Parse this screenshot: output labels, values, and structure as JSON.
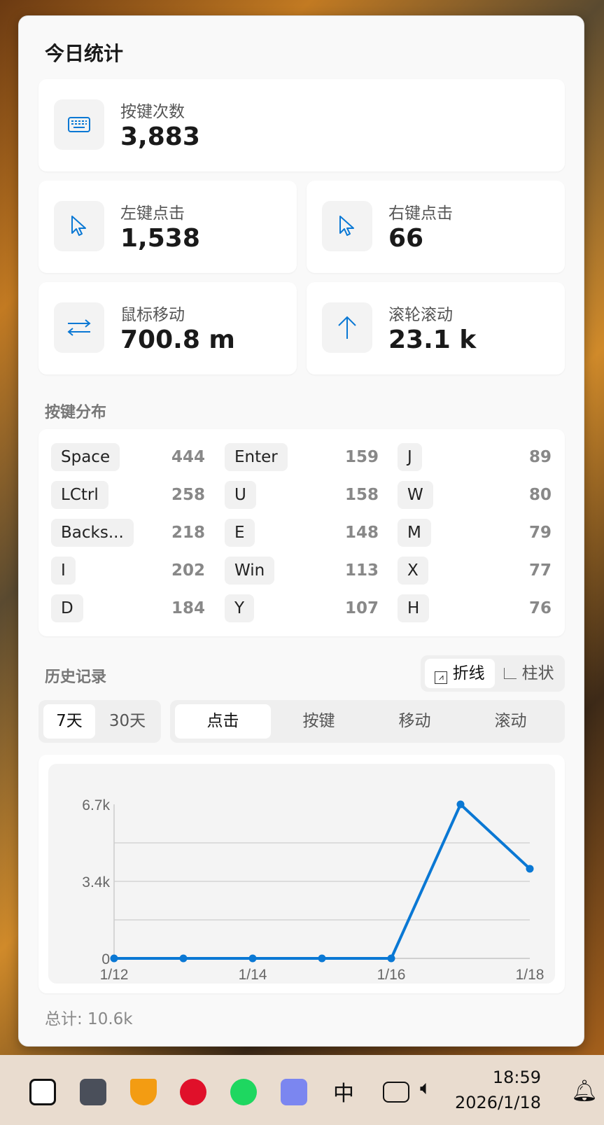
{
  "title": "今日统计",
  "stats": {
    "keys": {
      "label": "按键次数",
      "value": "3,883",
      "icon": "keyboard-icon"
    },
    "left": {
      "label": "左键点击",
      "value": "1,538",
      "icon": "cursor-icon"
    },
    "right": {
      "label": "右键点击",
      "value": "66",
      "icon": "cursor-icon"
    },
    "move": {
      "label": "鼠标移动",
      "value": "700.8 m",
      "icon": "arrows-swap-icon"
    },
    "scroll": {
      "label": "滚轮滚动",
      "value": "23.1 k",
      "icon": "arrow-up-icon"
    }
  },
  "key_dist": {
    "title": "按键分布",
    "items": [
      {
        "k": "Space",
        "v": "444"
      },
      {
        "k": "Enter",
        "v": "159"
      },
      {
        "k": "J",
        "v": "89"
      },
      {
        "k": "LCtrl",
        "v": "258"
      },
      {
        "k": "U",
        "v": "158"
      },
      {
        "k": "W",
        "v": "80"
      },
      {
        "k": "Backs...",
        "v": "218"
      },
      {
        "k": "E",
        "v": "148"
      },
      {
        "k": "M",
        "v": "79"
      },
      {
        "k": "I",
        "v": "202"
      },
      {
        "k": "Win",
        "v": "113"
      },
      {
        "k": "X",
        "v": "77"
      },
      {
        "k": "D",
        "v": "184"
      },
      {
        "k": "Y",
        "v": "107"
      },
      {
        "k": "H",
        "v": "76"
      }
    ]
  },
  "history": {
    "title": "历史记录",
    "chart_types": [
      "折线",
      "柱状"
    ],
    "ranges": [
      "7天",
      "30天"
    ],
    "metrics": [
      "点击",
      "按键",
      "移动",
      "滚动"
    ],
    "total": "总计: 10.6k"
  },
  "chart_data": {
    "type": "line",
    "x": [
      "1/12",
      "1/13",
      "1/14",
      "1/15",
      "1/16",
      "1/17",
      "1/18"
    ],
    "values": [
      0,
      0,
      0,
      0,
      0,
      6700,
      3900
    ],
    "xtick_labels": [
      "1/12",
      "1/14",
      "1/16",
      "1/18"
    ],
    "ytick_labels": [
      "0",
      "3.4k",
      "6.7k"
    ],
    "ylim": [
      0,
      6700
    ],
    "grid": true,
    "color": "#0a78d4"
  },
  "taskbar": {
    "ime": "中",
    "time": "18:59",
    "date": "2026/1/18"
  },
  "colors": {
    "accent": "#0a78d4"
  }
}
